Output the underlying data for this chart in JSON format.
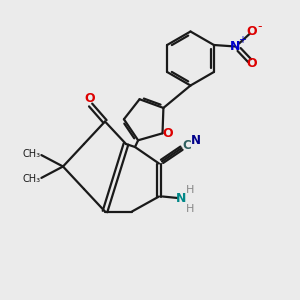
{
  "bg_color": "#ebebeb",
  "black": "#1a1a1a",
  "red": "#dd0000",
  "blue": "#0000cc",
  "teal": "#008888",
  "gray": "#888888",
  "bond_lw": 1.6,
  "fig_size": [
    3.0,
    3.0
  ],
  "dpi": 100,
  "xlim": [
    0,
    10
  ],
  "ylim": [
    0,
    10
  ]
}
